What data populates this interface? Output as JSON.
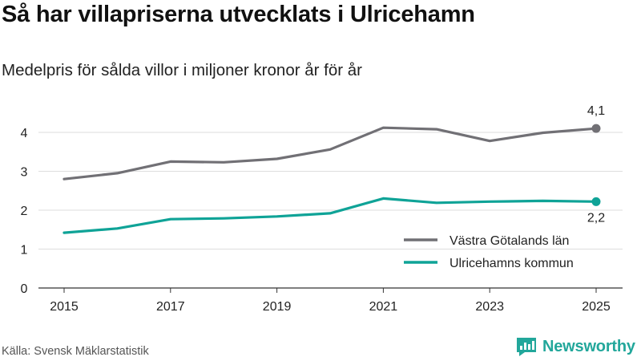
{
  "header": {
    "title": "Så har villapriserna utvecklats i Ulricehamn",
    "subtitle": "Medelpris för sålda villor i miljoner kronor år för år"
  },
  "footer": {
    "source": "Källa: Svensk Mäklarstatistik",
    "brand": "Newsworthy"
  },
  "colors": {
    "series_gray": "#717075",
    "series_teal": "#0fa397",
    "grid": "#dddddd",
    "axis": "#333333",
    "brand": "#22a79b"
  },
  "chart_data": {
    "type": "line",
    "title": "Så har villapriserna utvecklats i Ulricehamn",
    "subtitle": "Medelpris för sålda villor i miljoner kronor år för år",
    "x": [
      2015,
      2016,
      2017,
      2018,
      2019,
      2020,
      2021,
      2022,
      2023,
      2024,
      2025
    ],
    "x_tick_labels": [
      "2015",
      "2017",
      "2019",
      "2021",
      "2023",
      "2025"
    ],
    "y_tick_labels": [
      "0",
      "1",
      "2",
      "3",
      "4"
    ],
    "ylim": [
      0,
      4.3
    ],
    "grid": true,
    "legend_position": "bottom-right",
    "series": [
      {
        "name": "Västra Götalands län",
        "color": "#717075",
        "values": [
          2.8,
          2.95,
          3.25,
          3.23,
          3.32,
          3.56,
          4.12,
          4.08,
          3.78,
          3.99,
          4.1
        ],
        "end_label": "4,1"
      },
      {
        "name": "Ulricehamns kommun",
        "color": "#0fa397",
        "values": [
          1.42,
          1.53,
          1.77,
          1.79,
          1.84,
          1.92,
          2.3,
          2.19,
          2.22,
          2.24,
          2.22
        ],
        "end_label": "2,2"
      }
    ]
  }
}
